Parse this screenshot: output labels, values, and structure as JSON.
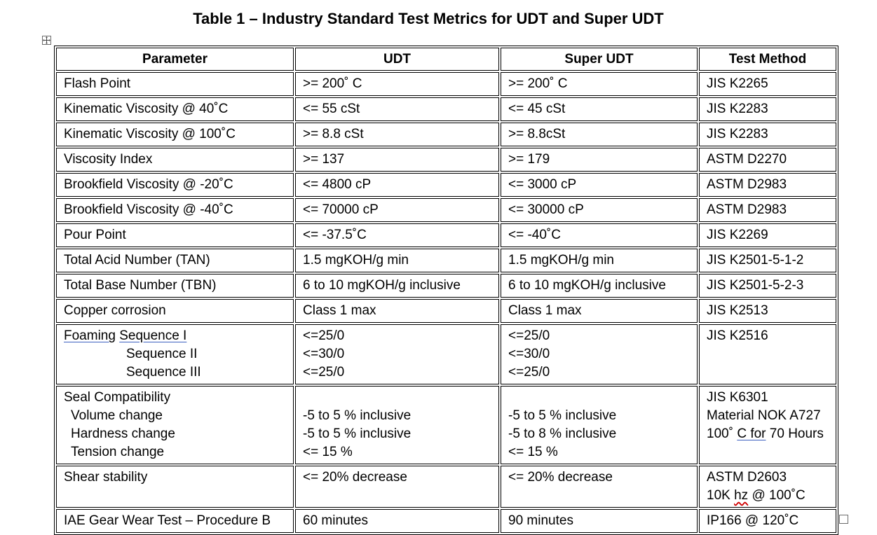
{
  "document": {
    "title": "Table 1 – Industry Standard Test Metrics for UDT and Super UDT"
  },
  "table": {
    "headers": [
      "Parameter",
      "UDT",
      "Super UDT",
      "Test Method"
    ],
    "rows": [
      {
        "parameter": "Flash Point",
        "udt": ">= 200˚ C",
        "super": ">= 200˚ C",
        "method": "JIS K2265"
      },
      {
        "parameter": "Kinematic Viscosity @ 40˚C",
        "udt": "<= 55 cSt",
        "super": "<= 45 cSt",
        "method": "JIS K2283"
      },
      {
        "parameter": "Kinematic Viscosity @ 100˚C",
        "udt": ">= 8.8 cSt",
        "super": ">= 8.8cSt",
        "method": "JIS K2283"
      },
      {
        "parameter": "Viscosity Index",
        "udt": ">= 137",
        "super": ">= 179",
        "method": "ASTM D2270"
      },
      {
        "parameter": "Brookfield Viscosity @ -20˚C",
        "udt": "<= 4800 cP",
        "super": "<= 3000 cP",
        "method": "ASTM D2983"
      },
      {
        "parameter": "Brookfield Viscosity @ -40˚C",
        "udt": "<= 70000 cP",
        "super": "<= 30000 cP",
        "method": "ASTM D2983"
      },
      {
        "parameter": "Pour Point",
        "udt": "<= -37.5˚C",
        "super": "<= -40˚C",
        "method": "JIS K2269"
      },
      {
        "parameter": "Total Acid Number (TAN)",
        "udt": "1.5 mgKOH/g min",
        "super": "1.5 mgKOH/g min",
        "method": "JIS K2501-5-1-2"
      },
      {
        "parameter": "Total Base Number (TBN)",
        "udt": "6 to 10 mgKOH/g inclusive",
        "super": "6 to 10 mgKOH/g inclusive",
        "method": "JIS K2501-5-2-3"
      },
      {
        "parameter": "Copper corrosion",
        "udt": "Class 1 max",
        "super": "Class 1 max",
        "method": "JIS K2513"
      }
    ],
    "foaming": {
      "label_main": "Foaming",
      "seq1": "Sequence I",
      "seq2": "Sequence II",
      "seq3": "Sequence III",
      "udt": [
        "<=25/0",
        "<=30/0",
        "<=25/0"
      ],
      "super": [
        "<=25/0",
        "<=30/0",
        "<=25/0"
      ],
      "method": "JIS K2516"
    },
    "seal": {
      "label": "Seal Compatibility",
      "volume": "Volume change",
      "hardness": "Hardness change",
      "tension": "Tension change",
      "udt": [
        "-5 to 5 % inclusive",
        "-5 to 5 % inclusive",
        "<= 15 %"
      ],
      "super": [
        "-5 to 5 % inclusive",
        "-5 to 8 % inclusive",
        "<= 15 %"
      ],
      "method1": "JIS K6301",
      "method2": "Material NOK A727",
      "method3_a": "100˚ ",
      "method3_b": "C  for",
      "method3_c": " 70 Hours"
    },
    "shear": {
      "label": "Shear stability",
      "udt": "<= 20% decrease",
      "super": "<= 20% decrease",
      "method1": "ASTM D2603",
      "method2_a": "10K ",
      "method2_b": "hz",
      "method2_c": " @ 100˚C"
    },
    "gear": {
      "label": "IAE Gear Wear Test – Procedure B",
      "udt": "60 minutes",
      "super": "90 minutes",
      "method": "IP166 @ 120˚C"
    }
  }
}
